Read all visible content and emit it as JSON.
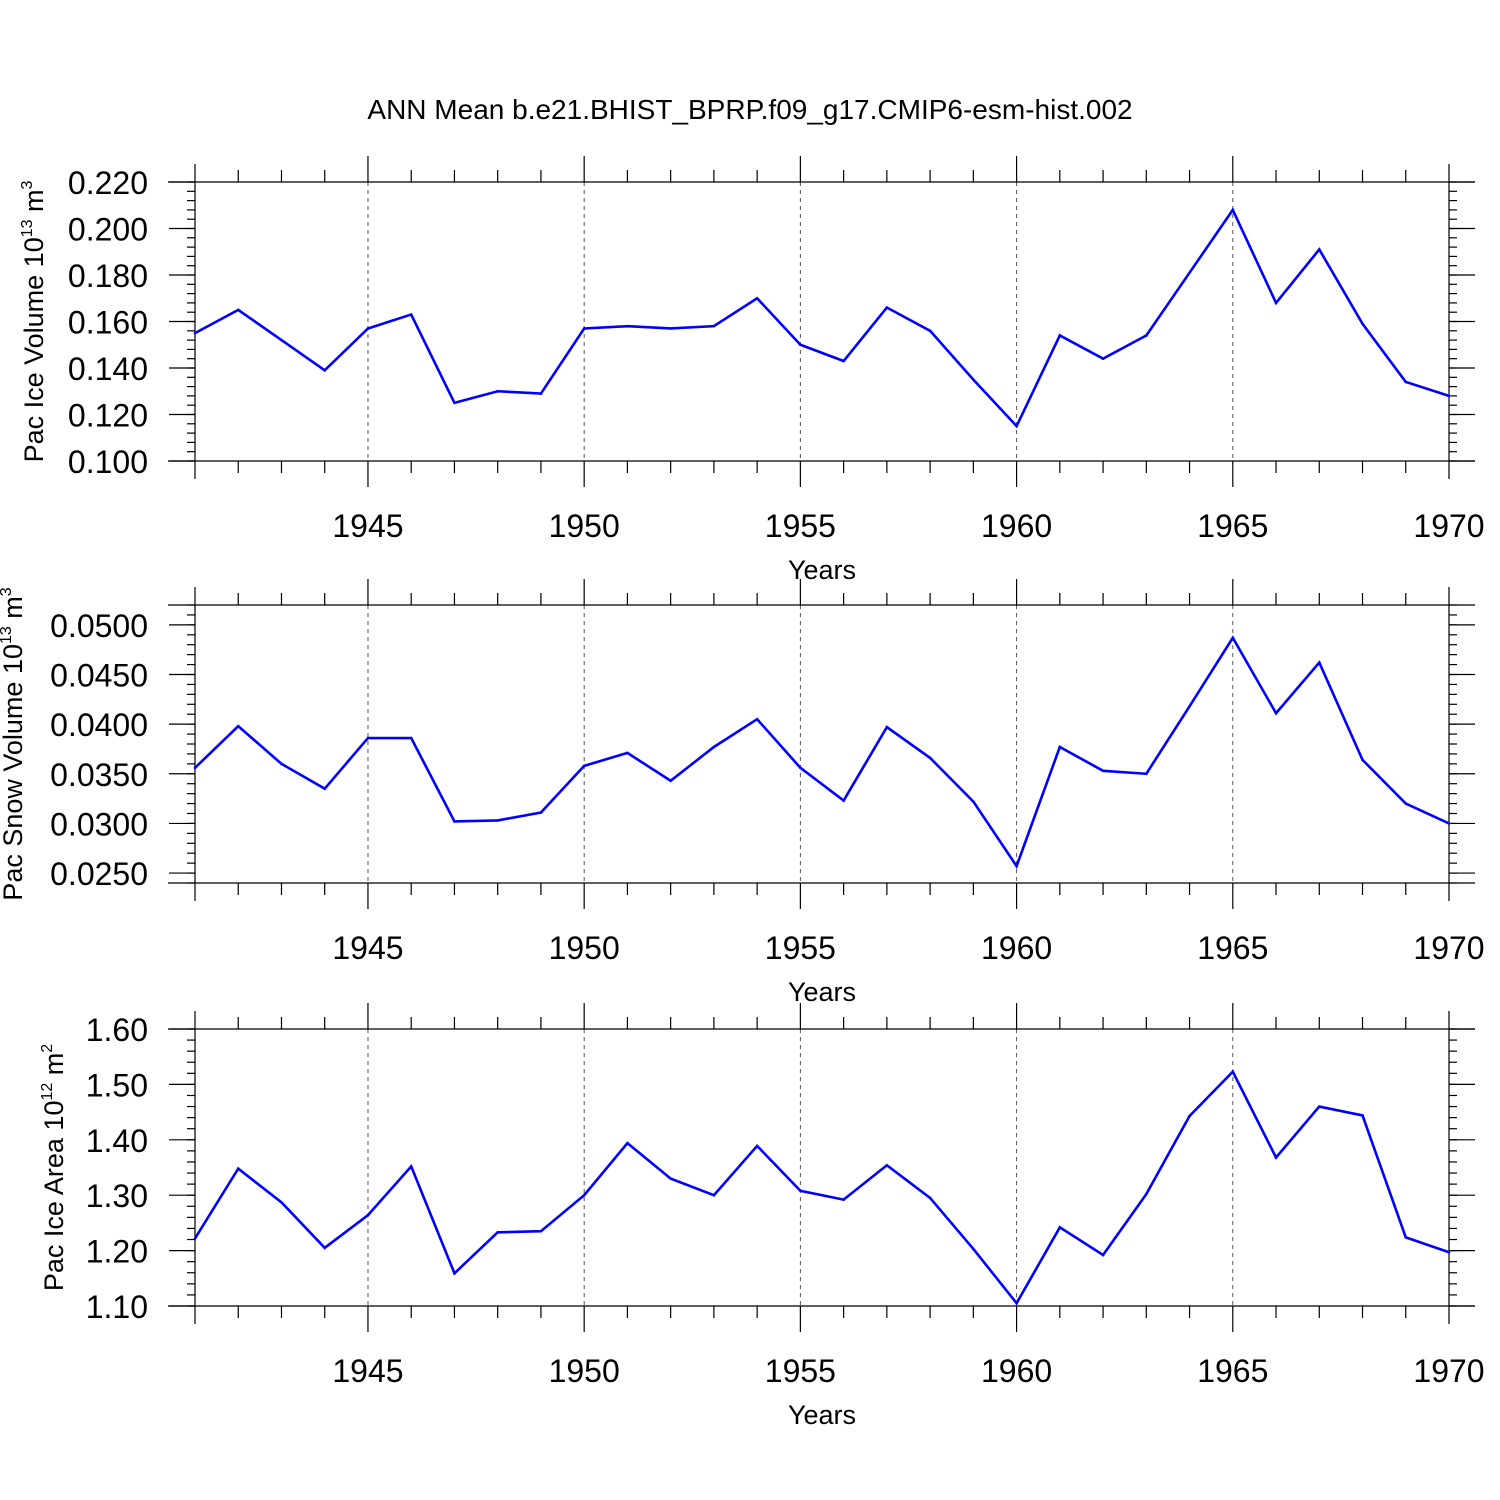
{
  "figure": {
    "title": "ANN Mean b.e21.BHIST_BPRP.f09_g17.CMIP6-esm-hist.002"
  },
  "colors": {
    "line": "#0000ff",
    "axis": "#000000"
  },
  "chart_data": [
    {
      "type": "line",
      "xlabel": "Years",
      "ylabel": "Pac Ice Volume 10",
      "ylabel_sup": "13",
      "ylabel_unit": " m",
      "ylabel_unit_sup": "3",
      "xlim": [
        1941,
        1970
      ],
      "ylim": [
        0.1,
        0.22
      ],
      "yticks": [
        0.1,
        0.12,
        0.14,
        0.16,
        0.18,
        0.2,
        0.22
      ],
      "ytick_labels": [
        "0.100",
        "0.120",
        "0.140",
        "0.160",
        "0.180",
        "0.200",
        "0.220"
      ],
      "xticks": [
        1945,
        1950,
        1955,
        1960,
        1965,
        1970
      ],
      "xtick_labels": [
        "1945",
        "1950",
        "1955",
        "1960",
        "1965",
        "1970"
      ],
      "grid": "x-dashed",
      "x": [
        1941,
        1942,
        1943,
        1944,
        1945,
        1946,
        1947,
        1948,
        1949,
        1950,
        1951,
        1952,
        1953,
        1954,
        1955,
        1956,
        1957,
        1958,
        1959,
        1960,
        1961,
        1962,
        1963,
        1964,
        1965,
        1966,
        1967,
        1968,
        1969,
        1970
      ],
      "values": [
        0.155,
        0.165,
        0.152,
        0.139,
        0.157,
        0.163,
        0.125,
        0.13,
        0.129,
        0.157,
        0.158,
        0.157,
        0.158,
        0.17,
        0.15,
        0.143,
        0.166,
        0.156,
        0.135,
        0.115,
        0.154,
        0.144,
        0.154,
        0.181,
        0.208,
        0.168,
        0.191,
        0.159,
        0.134,
        0.128
      ]
    },
    {
      "type": "line",
      "xlabel": "Years",
      "ylabel": "Pac Snow Volume 10",
      "ylabel_sup": "13",
      "ylabel_unit": " m",
      "ylabel_unit_sup": "3",
      "xlim": [
        1941,
        1970
      ],
      "ylim": [
        0.024,
        0.052
      ],
      "yticks": [
        0.025,
        0.03,
        0.035,
        0.04,
        0.045,
        0.05
      ],
      "ytick_labels": [
        "0.0250",
        "0.0300",
        "0.0350",
        "0.0400",
        "0.0450",
        "0.0500"
      ],
      "xticks": [
        1945,
        1950,
        1955,
        1960,
        1965,
        1970
      ],
      "xtick_labels": [
        "1945",
        "1950",
        "1955",
        "1960",
        "1965",
        "1970"
      ],
      "grid": "x-dashed",
      "x": [
        1941,
        1942,
        1943,
        1944,
        1945,
        1946,
        1947,
        1948,
        1949,
        1950,
        1951,
        1952,
        1953,
        1954,
        1955,
        1956,
        1957,
        1958,
        1959,
        1960,
        1961,
        1962,
        1963,
        1964,
        1965,
        1966,
        1967,
        1968,
        1969,
        1970
      ],
      "values": [
        0.0356,
        0.0398,
        0.036,
        0.0335,
        0.0386,
        0.0386,
        0.0302,
        0.0303,
        0.0311,
        0.0358,
        0.0371,
        0.0343,
        0.0377,
        0.0405,
        0.0356,
        0.0323,
        0.0397,
        0.0366,
        0.0322,
        0.0257,
        0.0377,
        0.0353,
        0.035,
        0.0418,
        0.0487,
        0.0411,
        0.0462,
        0.0364,
        0.032,
        0.03
      ]
    },
    {
      "type": "line",
      "xlabel": "Years",
      "ylabel": "Pac Ice Area 10",
      "ylabel_sup": "12",
      "ylabel_unit": " m",
      "ylabel_unit_sup": "2",
      "xlim": [
        1941,
        1970
      ],
      "ylim": [
        1.1,
        1.6
      ],
      "yticks": [
        1.1,
        1.2,
        1.3,
        1.4,
        1.5,
        1.6
      ],
      "ytick_labels": [
        "1.10",
        "1.20",
        "1.30",
        "1.40",
        "1.50",
        "1.60"
      ],
      "xticks": [
        1945,
        1950,
        1955,
        1960,
        1965,
        1970
      ],
      "xtick_labels": [
        "1945",
        "1950",
        "1955",
        "1960",
        "1965",
        "1970"
      ],
      "grid": "x-dashed",
      "x": [
        1941,
        1942,
        1943,
        1944,
        1945,
        1946,
        1947,
        1948,
        1949,
        1950,
        1951,
        1952,
        1953,
        1954,
        1955,
        1956,
        1957,
        1958,
        1959,
        1960,
        1961,
        1962,
        1963,
        1964,
        1965,
        1966,
        1967,
        1968,
        1969,
        1970
      ],
      "values": [
        1.222,
        1.348,
        1.287,
        1.205,
        1.264,
        1.352,
        1.159,
        1.233,
        1.235,
        1.3,
        1.394,
        1.33,
        1.3,
        1.389,
        1.308,
        1.292,
        1.354,
        1.295,
        1.203,
        1.105,
        1.242,
        1.192,
        1.302,
        1.443,
        1.523,
        1.368,
        1.46,
        1.444,
        1.224,
        1.197
      ]
    }
  ]
}
